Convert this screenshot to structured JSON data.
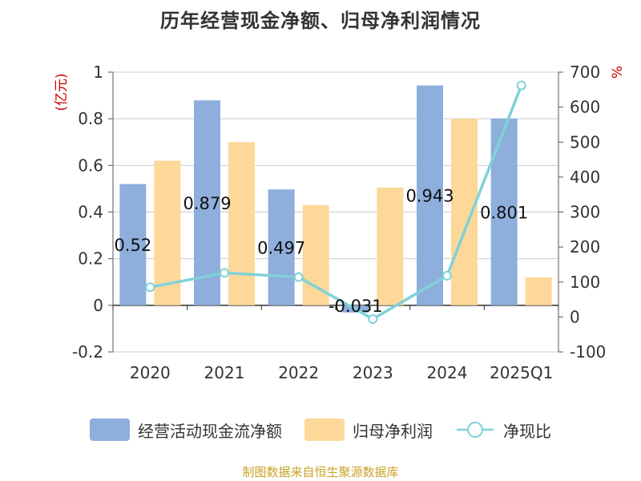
{
  "title": "历年经营现金净额、归母净利润情况",
  "source": "制图数据来自恒生聚源数据库",
  "colors": {
    "operating_cf": "#8eaedc",
    "net_profit": "#fdd898",
    "ratio": "#7fd2d8",
    "axis_text": "#333333",
    "unit_text": "#cc0000",
    "grid": "#cccccc"
  },
  "chart_data": {
    "type": "bar",
    "categories": [
      "2020",
      "2021",
      "2022",
      "2023",
      "2024",
      "2025Q1"
    ],
    "y_left": {
      "unit": "(亿元)",
      "range": [
        -0.2,
        1.0
      ],
      "ticks": [
        "1",
        "0.8",
        "0.6",
        "0.4",
        "0.2",
        "0",
        "-0.2"
      ]
    },
    "y_right": {
      "unit": "%",
      "range": [
        -100,
        700
      ],
      "ticks": [
        "700",
        "600",
        "500",
        "400",
        "300",
        "200",
        "100",
        "0",
        "-100"
      ]
    },
    "grid": true,
    "legend_position": "bottom",
    "series": [
      {
        "name": "经营活动现金流净额",
        "type": "bar",
        "axis": "left",
        "values": [
          0.52,
          0.879,
          0.497,
          -0.031,
          0.943,
          0.801
        ],
        "labels": [
          "0.52",
          "0.879",
          "0.497",
          "-0.031",
          "0.943",
          "0.801"
        ]
      },
      {
        "name": "归母净利润",
        "type": "bar",
        "axis": "left",
        "values": [
          0.62,
          0.7,
          0.43,
          0.505,
          0.8,
          0.12
        ]
      },
      {
        "name": "净现比",
        "type": "line",
        "axis": "right",
        "values": [
          85,
          126,
          114,
          -6,
          118,
          662
        ]
      }
    ]
  }
}
